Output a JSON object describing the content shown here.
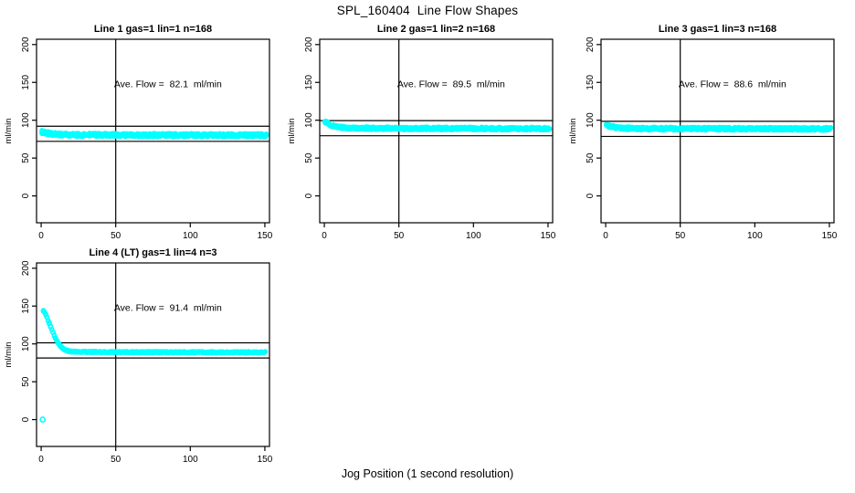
{
  "page": {
    "title": "SPL_160404  Line Flow Shapes",
    "xlabel": "Jog Position (1 second resolution)",
    "background": "#ffffff",
    "point_color": "#00ffff",
    "axis_color": "#000000"
  },
  "chart_data": [
    {
      "type": "scatter",
      "title": "Line 1 gas=1 lin=1 n=168",
      "ylabel": "ml/min",
      "annotation": "Ave. Flow =  82.1  ml/min",
      "ave_flow": 82.1,
      "xlim": [
        -3.1,
        153.1
      ],
      "ylim": [
        -35.5,
        207
      ],
      "xticks": [
        0,
        50,
        100,
        150
      ],
      "yticks": [
        0,
        50,
        100,
        150,
        200
      ],
      "ref_hlines": [
        92.1,
        72.1
      ],
      "ref_vline": 50,
      "band_halfwidth": 2.2,
      "profile": [
        [
          0.5,
          84.5
        ],
        [
          2,
          84
        ],
        [
          4,
          83
        ],
        [
          7,
          82
        ],
        [
          12,
          81.2
        ],
        [
          20,
          80.8
        ],
        [
          50,
          80.5
        ],
        [
          100,
          80.3
        ],
        [
          151,
          80.2
        ]
      ],
      "outliers": []
    },
    {
      "type": "scatter",
      "title": "Line 2 gas=1 lin=2 n=168",
      "ylabel": "ml/min",
      "annotation": "Ave. Flow =  89.5  ml/min",
      "ave_flow": 89.5,
      "xlim": [
        -3.1,
        153.1
      ],
      "ylim": [
        -35.5,
        207
      ],
      "xticks": [
        0,
        50,
        100,
        150
      ],
      "yticks": [
        0,
        50,
        100,
        150,
        200
      ],
      "ref_hlines": [
        99.5,
        79.5
      ],
      "ref_vline": 50,
      "band_halfwidth": 1.8,
      "profile": [
        [
          0.5,
          98
        ],
        [
          1.5,
          97.5
        ],
        [
          3,
          95.5
        ],
        [
          4,
          94
        ],
        [
          5,
          93
        ],
        [
          6,
          92.2
        ],
        [
          8,
          91.3
        ],
        [
          12,
          90.3
        ],
        [
          20,
          89.6
        ],
        [
          50,
          89.2
        ],
        [
          100,
          89
        ],
        [
          151,
          88.9
        ]
      ],
      "outliers": []
    },
    {
      "type": "scatter",
      "title": "Line 3 gas=1 lin=3 n=168",
      "ylabel": "ml/min",
      "annotation": "Ave. Flow =  88.6  ml/min",
      "ave_flow": 88.6,
      "xlim": [
        -3.1,
        153.1
      ],
      "ylim": [
        -35.5,
        207
      ],
      "xticks": [
        0,
        50,
        100,
        150
      ],
      "yticks": [
        0,
        50,
        100,
        150,
        200
      ],
      "ref_hlines": [
        98.6,
        78.6
      ],
      "ref_vline": 50,
      "band_halfwidth": 1.9,
      "profile": [
        [
          0.5,
          93
        ],
        [
          2,
          92.5
        ],
        [
          4,
          91.5
        ],
        [
          7,
          90.5
        ],
        [
          12,
          89.5
        ],
        [
          20,
          89
        ],
        [
          50,
          88.8
        ],
        [
          100,
          88.7
        ],
        [
          151,
          88.6
        ]
      ],
      "outliers": []
    },
    {
      "type": "scatter",
      "title": "Line 4 (LT) gas=1 lin=4 n=3",
      "ylabel": "ml/min",
      "annotation": "Ave. Flow =  91.4  ml/min",
      "ave_flow": 91.4,
      "xlim": [
        -3.1,
        153.1
      ],
      "ylim": [
        -35.5,
        207
      ],
      "xticks": [
        0,
        50,
        100,
        150
      ],
      "yticks": [
        0,
        50,
        100,
        150,
        200
      ],
      "ref_hlines": [
        101.4,
        81.4
      ],
      "ref_vline": 50,
      "band_halfwidth": 0.9,
      "profile": [
        [
          1.5,
          143.5
        ],
        [
          2,
          143
        ],
        [
          3,
          139
        ],
        [
          4,
          134.5
        ],
        [
          5,
          129.5
        ],
        [
          6,
          124.5
        ],
        [
          7,
          119.5
        ],
        [
          8,
          114.5
        ],
        [
          9,
          110
        ],
        [
          10,
          106
        ],
        [
          11,
          102.5
        ],
        [
          12,
          99.5
        ],
        [
          13,
          97
        ],
        [
          14,
          95
        ],
        [
          15,
          93.5
        ],
        [
          16,
          92.3
        ],
        [
          17,
          91.5
        ],
        [
          18,
          90.8
        ],
        [
          20,
          90.1
        ],
        [
          25,
          89.6
        ],
        [
          40,
          89.3
        ],
        [
          70,
          89.1
        ],
        [
          100,
          89
        ],
        [
          151,
          88.9
        ]
      ],
      "outliers": [
        [
          1,
          0
        ]
      ]
    }
  ]
}
